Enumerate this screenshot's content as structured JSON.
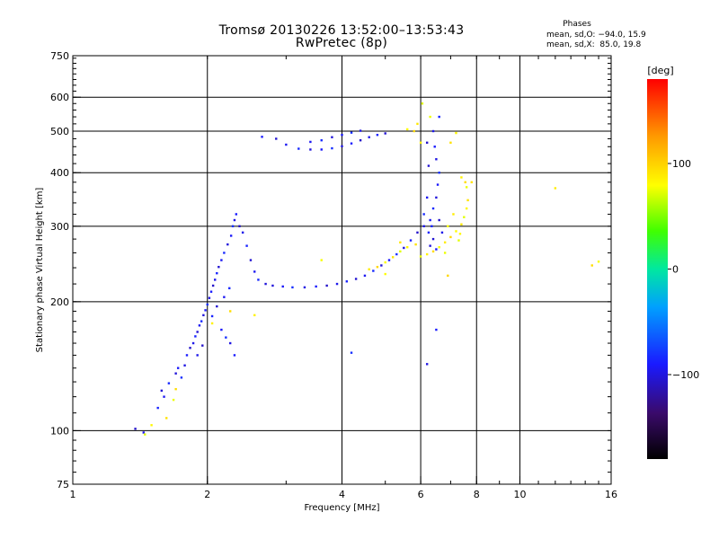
{
  "header": {
    "title_line1": "Tromsø 20130226 13:52:00–13:53:43",
    "title_line2": "RwPretec (8p)",
    "phase_title": "Phases",
    "phase_stats_o": "mean, sd,O: −94.0, 15.9",
    "phase_stats_x": "mean, sd,X:  85.0, 19.8"
  },
  "colorbar": {
    "unit": "[deg]",
    "tick_labels": [
      "100",
      "0",
      "−100"
    ],
    "tick_values": [
      100,
      0,
      -100
    ],
    "range": [
      -180,
      180
    ]
  },
  "chart_data": {
    "type": "scatter",
    "xlabel": "Frequency [MHz]",
    "ylabel": "Stationary phase Virtual Height [km]",
    "xscale": "log",
    "yscale": "log",
    "xlim": [
      1,
      16
    ],
    "ylim": [
      75,
      750
    ],
    "x_ticks": [
      1,
      2,
      4,
      6,
      8,
      10,
      16
    ],
    "x_tick_labels": [
      "1",
      "2",
      "4",
      "6",
      "8",
      "10",
      "16"
    ],
    "y_ticks": [
      75,
      100,
      200,
      300,
      400,
      500,
      600,
      750
    ],
    "y_tick_labels": [
      "75",
      "100",
      "200",
      "300",
      "400",
      "500",
      "600",
      "750"
    ],
    "x_gridlines": [
      2,
      4,
      6,
      8,
      10
    ],
    "y_gridlines": [
      100,
      200,
      300,
      400,
      500,
      600
    ],
    "color_by": "phase [deg]",
    "series": [
      {
        "mode": "O",
        "mean_phase": -94,
        "points": [
          [
            1.38,
            101
          ],
          [
            1.44,
            99
          ],
          [
            1.55,
            113
          ],
          [
            1.58,
            124
          ],
          [
            1.6,
            120
          ],
          [
            1.64,
            129
          ],
          [
            1.7,
            136
          ],
          [
            1.72,
            140
          ],
          [
            1.75,
            133
          ],
          [
            1.78,
            142
          ],
          [
            1.8,
            150
          ],
          [
            1.83,
            156
          ],
          [
            1.86,
            160
          ],
          [
            1.88,
            166
          ],
          [
            1.9,
            170
          ],
          [
            1.92,
            176
          ],
          [
            1.94,
            180
          ],
          [
            1.96,
            186
          ],
          [
            1.98,
            191
          ],
          [
            2.0,
            197
          ],
          [
            2.02,
            204
          ],
          [
            2.04,
            211
          ],
          [
            2.06,
            218
          ],
          [
            2.08,
            225
          ],
          [
            2.1,
            233
          ],
          [
            2.12,
            241
          ],
          [
            2.15,
            250
          ],
          [
            2.18,
            260
          ],
          [
            2.22,
            272
          ],
          [
            2.26,
            285
          ],
          [
            2.28,
            300
          ],
          [
            2.3,
            310
          ],
          [
            2.32,
            320
          ],
          [
            2.36,
            300
          ],
          [
            2.4,
            290
          ],
          [
            2.45,
            270
          ],
          [
            2.5,
            250
          ],
          [
            2.55,
            235
          ],
          [
            2.6,
            225
          ],
          [
            2.7,
            220
          ],
          [
            2.15,
            172
          ],
          [
            2.2,
            165
          ],
          [
            2.25,
            160
          ],
          [
            2.3,
            150
          ],
          [
            1.95,
            158
          ],
          [
            1.9,
            150
          ],
          [
            2.05,
            185
          ],
          [
            2.1,
            195
          ],
          [
            2.18,
            205
          ],
          [
            2.24,
            215
          ],
          [
            2.8,
            218
          ],
          [
            2.95,
            217
          ],
          [
            3.1,
            216
          ],
          [
            3.3,
            216
          ],
          [
            3.5,
            217
          ],
          [
            3.7,
            218
          ],
          [
            3.9,
            220
          ],
          [
            4.1,
            223
          ],
          [
            4.3,
            226
          ],
          [
            4.5,
            230
          ],
          [
            4.7,
            236
          ],
          [
            4.9,
            243
          ],
          [
            5.1,
            250
          ],
          [
            5.3,
            258
          ],
          [
            5.5,
            267
          ],
          [
            5.7,
            278
          ],
          [
            5.9,
            290
          ],
          [
            6.1,
            300
          ],
          [
            6.25,
            290
          ],
          [
            6.4,
            280
          ],
          [
            6.3,
            310
          ],
          [
            6.4,
            330
          ],
          [
            6.5,
            350
          ],
          [
            6.55,
            375
          ],
          [
            6.6,
            400
          ],
          [
            6.5,
            430
          ],
          [
            6.45,
            460
          ],
          [
            6.6,
            310
          ],
          [
            6.7,
            290
          ],
          [
            6.35,
            300
          ],
          [
            2.85,
            480
          ],
          [
            3.0,
            465
          ],
          [
            3.2,
            455
          ],
          [
            3.4,
            453
          ],
          [
            3.6,
            453
          ],
          [
            3.8,
            456
          ],
          [
            4.0,
            461
          ],
          [
            4.2,
            468
          ],
          [
            4.4,
            476
          ],
          [
            4.6,
            484
          ],
          [
            4.8,
            490
          ],
          [
            5.0,
            494
          ],
          [
            3.4,
            472
          ],
          [
            3.6,
            476
          ],
          [
            3.8,
            484
          ],
          [
            4.0,
            490
          ],
          [
            4.2,
            496
          ],
          [
            4.4,
            501
          ],
          [
            2.65,
            485
          ],
          [
            6.2,
            470
          ],
          [
            6.4,
            500
          ],
          [
            6.6,
            540
          ],
          [
            6.25,
            415
          ],
          [
            6.2,
            350
          ],
          [
            6.1,
            320
          ],
          [
            6.3,
            270
          ],
          [
            6.5,
            265
          ],
          [
            4.2,
            152
          ],
          [
            6.2,
            143
          ],
          [
            6.5,
            172
          ]
        ]
      },
      {
        "mode": "X",
        "mean_phase": 85,
        "points": [
          [
            1.45,
            98
          ],
          [
            1.5,
            103
          ],
          [
            1.62,
            107
          ],
          [
            1.68,
            118
          ],
          [
            2.05,
            178
          ],
          [
            2.25,
            190
          ],
          [
            3.6,
            250
          ],
          [
            4.6,
            238
          ],
          [
            4.8,
            241
          ],
          [
            5.0,
            247
          ],
          [
            5.2,
            254
          ],
          [
            5.4,
            262
          ],
          [
            5.6,
            268
          ],
          [
            5.85,
            272
          ],
          [
            6.0,
            255
          ],
          [
            6.2,
            258
          ],
          [
            6.4,
            262
          ],
          [
            6.6,
            268
          ],
          [
            6.8,
            275
          ],
          [
            7.0,
            283
          ],
          [
            7.2,
            292
          ],
          [
            7.4,
            303
          ],
          [
            7.5,
            315
          ],
          [
            7.6,
            330
          ],
          [
            7.65,
            345
          ],
          [
            7.6,
            370
          ],
          [
            7.4,
            390
          ],
          [
            7.55,
            380
          ],
          [
            6.9,
            300
          ],
          [
            7.1,
            320
          ],
          [
            5.8,
            500
          ],
          [
            5.6,
            505
          ],
          [
            5.9,
            520
          ],
          [
            6.05,
            580
          ],
          [
            7.2,
            495
          ],
          [
            7.8,
            380
          ],
          [
            6.8,
            260
          ],
          [
            6.0,
            470
          ],
          [
            14.5,
            243
          ],
          [
            15.0,
            248
          ],
          [
            12.0,
            368
          ],
          [
            6.9,
            230
          ],
          [
            5.0,
            232
          ],
          [
            5.4,
            275
          ],
          [
            7.3,
            278
          ],
          [
            7.35,
            288
          ],
          [
            7.0,
            470
          ],
          [
            6.3,
            540
          ],
          [
            2.55,
            186
          ],
          [
            1.7,
            125
          ]
        ]
      }
    ]
  }
}
